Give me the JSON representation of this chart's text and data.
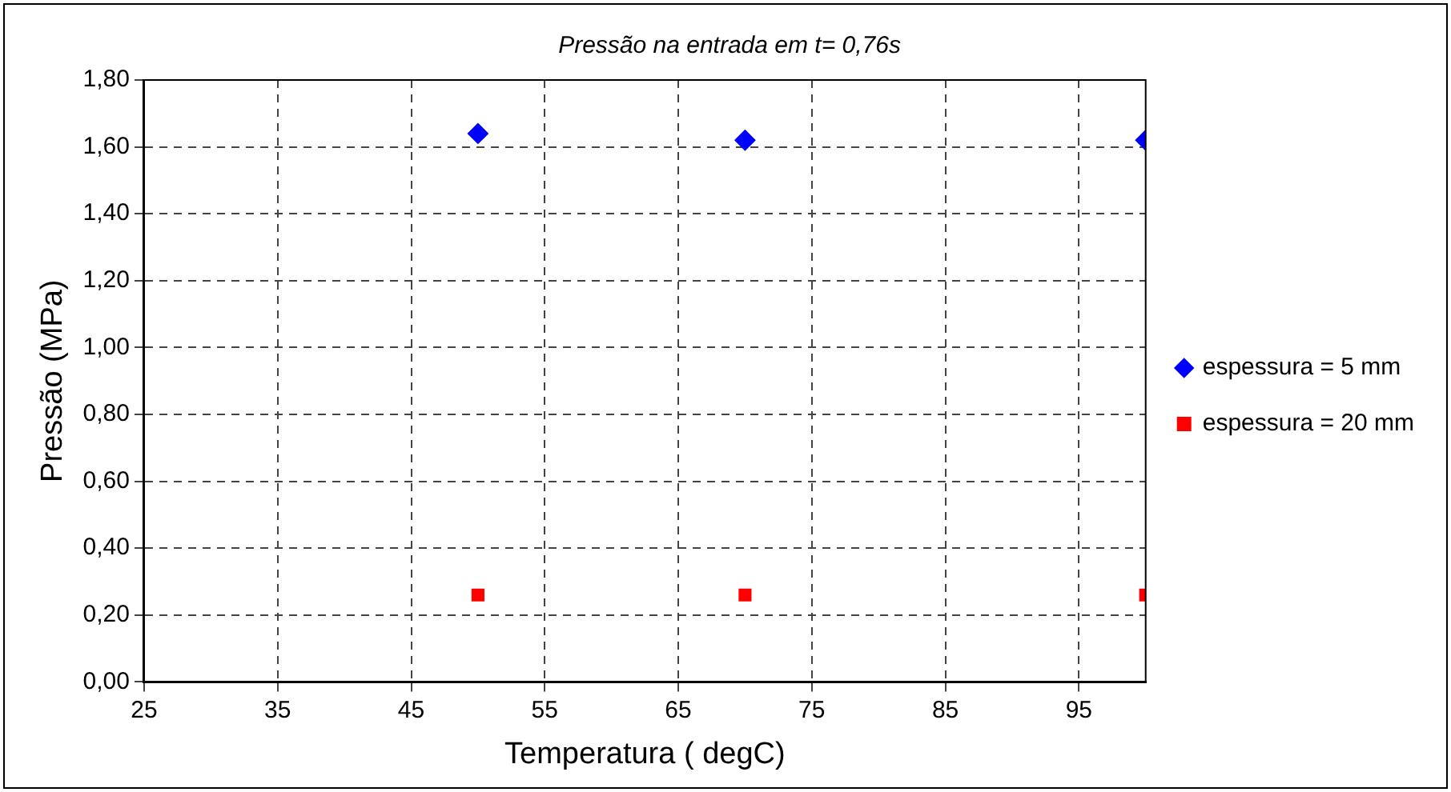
{
  "chart_data": {
    "type": "scatter",
    "title": "Pressão na entrada em t= 0,76s",
    "xlabel": "Temperatura ( degC)",
    "ylabel": "Pressão (MPa)",
    "series": [
      {
        "name": "espessura = 5 mm",
        "color": "#0000ff",
        "marker": "diamond",
        "x": [
          50,
          70,
          100
        ],
        "values": [
          1.64,
          1.62,
          1.62
        ]
      },
      {
        "name": "espessura = 20 mm",
        "color": "#ff0000",
        "marker": "square",
        "x": [
          50,
          70,
          100
        ],
        "values": [
          0.26,
          0.26,
          0.26
        ]
      }
    ],
    "xlim": [
      25,
      100
    ],
    "xticks": [
      25,
      35,
      45,
      55,
      65,
      75,
      85,
      95
    ],
    "ylim": [
      0,
      1.8
    ],
    "yticks": [
      {
        "value": 0,
        "label": "0,00"
      },
      {
        "value": 0.2,
        "label": "0,20"
      },
      {
        "value": 0.4,
        "label": "0,40"
      },
      {
        "value": 0.6,
        "label": "0,60"
      },
      {
        "value": 0.8,
        "label": "0,80"
      },
      {
        "value": 1,
        "label": "1,00"
      },
      {
        "value": 1.2,
        "label": "1,20"
      },
      {
        "value": 1.4,
        "label": "1,40"
      },
      {
        "value": 1.6,
        "label": "1,60"
      },
      {
        "value": 1.8,
        "label": "1,80"
      }
    ],
    "grid": true,
    "legend": "right",
    "line_style": "dashed"
  }
}
